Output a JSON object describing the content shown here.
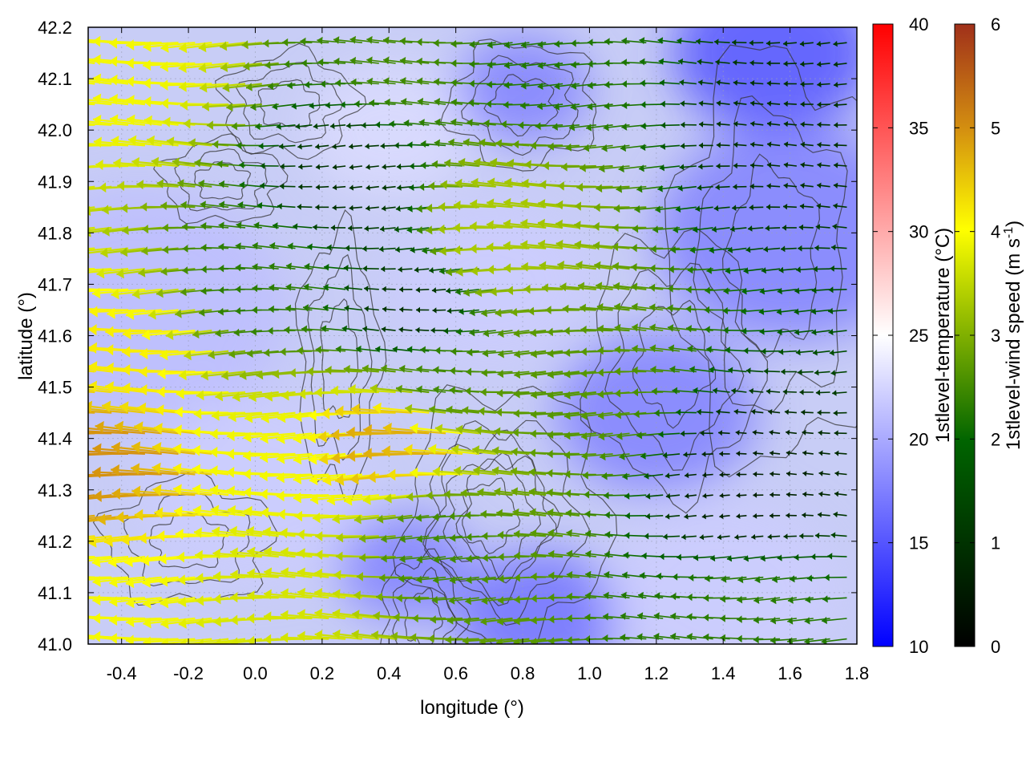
{
  "chart_data": {
    "type": "heatmap",
    "overlays": [
      "contour",
      "vector-field"
    ],
    "title": "",
    "xlabel": "longitude (°)",
    "ylabel": "latitude (°)",
    "xlim": [
      -0.5,
      1.8
    ],
    "ylim": [
      41.0,
      42.2
    ],
    "x_ticks": [
      -0.4,
      -0.2,
      0.0,
      0.2,
      0.4,
      0.6,
      0.8,
      1.0,
      1.2,
      1.4,
      1.6,
      1.8
    ],
    "x_tick_labels": [
      "-0.4",
      "-0.2",
      "0.0",
      "0.2",
      "0.4",
      "0.6",
      "0.8",
      "1.0",
      "1.2",
      "1.4",
      "1.6",
      "1.8"
    ],
    "y_ticks": [
      41.0,
      41.1,
      41.2,
      41.3,
      41.4,
      41.5,
      41.6,
      41.7,
      41.8,
      41.9,
      42.0,
      42.1,
      42.2
    ],
    "y_tick_labels": [
      "41.0",
      "41.1",
      "41.2",
      "41.3",
      "41.4",
      "41.5",
      "41.6",
      "41.7",
      "41.8",
      "41.9",
      "42.0",
      "42.1",
      "42.2"
    ],
    "grid": true,
    "temperature_colorbar": {
      "label": "1stlevel-temperature (°C)",
      "range": [
        10,
        40
      ],
      "ticks": [
        10,
        15,
        20,
        25,
        30,
        35,
        40
      ],
      "tick_labels": [
        "10",
        "15",
        "20",
        "25",
        "30",
        "35",
        "40"
      ],
      "colors": [
        "#0000ff",
        "#ffffff",
        "#ff0000"
      ],
      "pivot": 25
    },
    "wind_colorbar": {
      "label_main": "1stlevel-wind speed (m s",
      "label_sup": "-1",
      "label_end": ")",
      "range": [
        0,
        6
      ],
      "ticks": [
        0,
        1,
        2,
        3,
        4,
        5,
        6
      ],
      "tick_labels": [
        "0",
        "1",
        "2",
        "3",
        "4",
        "5",
        "6"
      ],
      "colors": [
        "#000000",
        "#006400",
        "#80b000",
        "#ffff00",
        "#d49010",
        "#a0301a"
      ]
    },
    "temperature_field_blobs": [
      {
        "x": -0.35,
        "y": 41.65,
        "r": 0.45,
        "value": 21
      },
      {
        "x": 0.0,
        "y": 41.3,
        "r": 0.35,
        "value": 22
      },
      {
        "x": 0.7,
        "y": 41.7,
        "r": 0.3,
        "value": 22
      },
      {
        "x": 0.4,
        "y": 42.0,
        "r": 0.25,
        "value": 23
      },
      {
        "x": 1.55,
        "y": 42.15,
        "r": 0.3,
        "value": 14
      },
      {
        "x": 1.6,
        "y": 41.8,
        "r": 0.4,
        "value": 17
      },
      {
        "x": 0.85,
        "y": 41.05,
        "r": 0.25,
        "value": 16
      },
      {
        "x": 1.2,
        "y": 41.45,
        "r": 0.3,
        "value": 17
      },
      {
        "x": 0.45,
        "y": 41.15,
        "r": 0.2,
        "value": 17
      },
      {
        "x": 1.4,
        "y": 41.1,
        "r": 0.35,
        "value": 22
      },
      {
        "x": 0.8,
        "y": 42.08,
        "r": 0.2,
        "value": 17
      }
    ],
    "wind_field_regions": [
      {
        "x": -0.4,
        "y": 41.35,
        "speed": 4.8
      },
      {
        "x": -0.3,
        "y": 41.55,
        "speed": 3.8
      },
      {
        "x": -0.4,
        "y": 41.1,
        "speed": 3.5
      },
      {
        "x": -0.3,
        "y": 42.1,
        "speed": 3.5
      },
      {
        "x": 0.2,
        "y": 41.35,
        "speed": 3.5
      },
      {
        "x": 0.5,
        "y": 41.4,
        "speed": 4.5
      },
      {
        "x": 0.2,
        "y": 41.1,
        "speed": 3.2
      },
      {
        "x": 0.8,
        "y": 41.8,
        "speed": 2.8
      },
      {
        "x": 0.6,
        "y": 41.5,
        "speed": 1.8
      },
      {
        "x": 1.0,
        "y": 41.5,
        "speed": 2.0
      },
      {
        "x": 0.6,
        "y": 41.2,
        "speed": 1.8
      },
      {
        "x": 0.5,
        "y": 41.65,
        "speed": 0.6
      },
      {
        "x": 1.5,
        "y": 41.3,
        "speed": 0.4
      },
      {
        "x": 1.6,
        "y": 42.0,
        "speed": 0.6
      },
      {
        "x": 1.5,
        "y": 41.05,
        "speed": 1.6
      },
      {
        "x": 0.3,
        "y": 41.9,
        "speed": 0.6
      },
      {
        "x": 0.9,
        "y": 42.15,
        "speed": 1.5
      },
      {
        "x": 0.5,
        "y": 42.15,
        "speed": 1.8
      },
      {
        "x": 0.05,
        "y": 41.7,
        "speed": 1.6
      }
    ],
    "contour_levels": [
      [
        {
          "x": -0.1,
          "y": 41.9
        },
        0.18,
        0.08
      ],
      [
        {
          "x": 0.25,
          "y": 41.55
        },
        0.12,
        0.25
      ],
      [
        {
          "x": 0.7,
          "y": 41.25
        },
        0.18,
        0.15
      ],
      [
        {
          "x": 0.75,
          "y": 41.25
        },
        0.3,
        0.25
      ],
      [
        {
          "x": 0.8,
          "y": 42.05
        },
        0.22,
        0.12
      ],
      [
        {
          "x": 1.55,
          "y": 41.75
        },
        0.3,
        0.4
      ],
      [
        {
          "x": -0.2,
          "y": 41.2
        },
        0.25,
        0.12
      ],
      [
        {
          "x": 0.1,
          "y": 42.05
        },
        0.2,
        0.1
      ],
      [
        {
          "x": 0.5,
          "y": 41.05
        },
        0.12,
        0.12
      ],
      [
        {
          "x": 1.25,
          "y": 41.55
        },
        0.25,
        0.25
      ]
    ]
  }
}
